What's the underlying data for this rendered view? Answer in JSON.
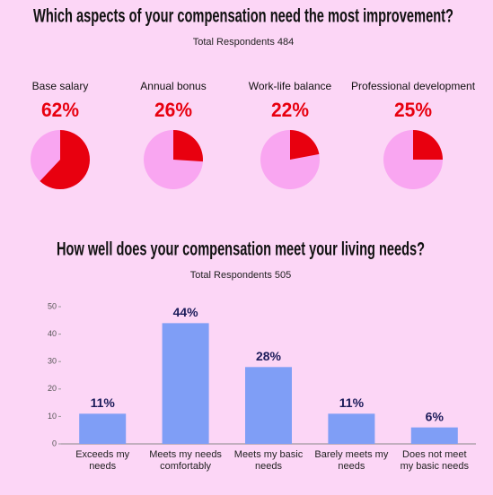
{
  "chart_data": [
    {
      "type": "pie",
      "title": "Which aspects of your compensation need the most improvement?",
      "subtitle": "Total Respondents 484",
      "categories": [
        "Base salary",
        "Annual bonus",
        "Work-life balance",
        "Professional development"
      ],
      "values": [
        62,
        26,
        22,
        25
      ],
      "value_labels": [
        "62%",
        "26%",
        "22%",
        "25%"
      ],
      "color": "#e8000f",
      "rest_color": "#f9a6f1"
    },
    {
      "type": "bar",
      "title": "How well does your compensation meet your living needs?",
      "subtitle": "Total Respondents 505",
      "categories": [
        "Exceeds my needs",
        "Meets my needs comfortably",
        "Meets my basic needs",
        "Barely meets my needs",
        "Does not meet my basic needs"
      ],
      "values": [
        11,
        44,
        28,
        11,
        6
      ],
      "value_labels": [
        "11%",
        "44%",
        "28%",
        "11%",
        "6%"
      ],
      "color": "#7f9ef6",
      "ylim": [
        0,
        50
      ],
      "yticks": [
        0,
        10,
        20,
        30,
        40,
        50
      ]
    }
  ]
}
